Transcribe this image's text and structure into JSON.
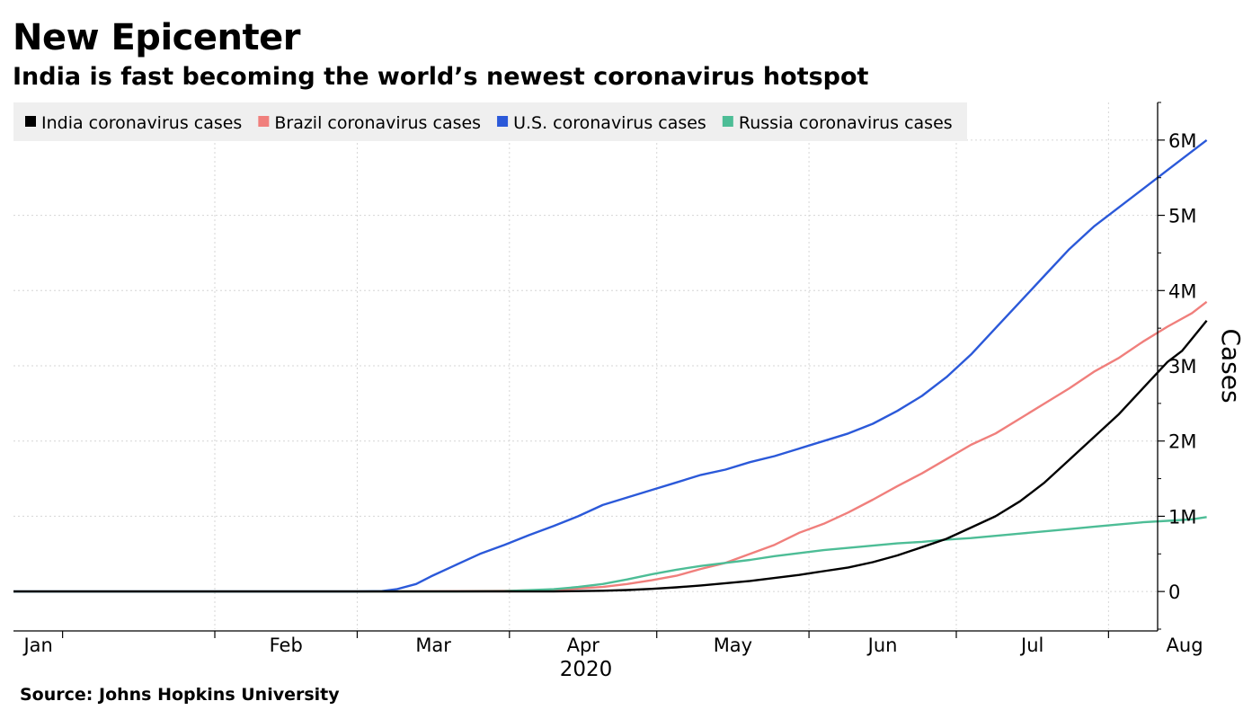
{
  "title": "New Epicenter",
  "subtitle": "India is fast becoming the world’s newest coronavirus hotspot",
  "source": "Source: Johns Hopkins University",
  "colors": {
    "India": "#000000",
    "Brazil": "#f07f7c",
    "U.S.": "#2b59d9",
    "Russia": "#4dbd96",
    "legend_bg": "#efefef",
    "grid": "#d6d6d6"
  },
  "chart_data": {
    "type": "line",
    "title": "New Epicenter",
    "subtitle": "India is fast becoming the world’s newest coronavirus hotspot",
    "xlabel": "2020",
    "ylabel": "Cases",
    "x_unit": "day of year 2020 (Jan 1 = 0)",
    "xlim": [
      -10,
      223
    ],
    "ylim": [
      -500000,
      6500000
    ],
    "month_ticks": [
      {
        "label": "Jan",
        "day": 0
      },
      {
        "label": "Feb",
        "day": 31
      },
      {
        "label": "Mar",
        "day": 60
      },
      {
        "label": "Apr",
        "day": 91
      },
      {
        "label": "May",
        "day": 121
      },
      {
        "label": "Jun",
        "day": 152
      },
      {
        "label": "Jul",
        "day": 182
      },
      {
        "label": "Aug",
        "day": 213
      }
    ],
    "y_ticks": [
      {
        "label": "0",
        "value": 0
      },
      {
        "label": "1M",
        "value": 1000000
      },
      {
        "label": "2M",
        "value": 2000000
      },
      {
        "label": "3M",
        "value": 3000000
      },
      {
        "label": "4M",
        "value": 4000000
      },
      {
        "label": "5M",
        "value": 5000000
      },
      {
        "label": "6M",
        "value": 6000000
      }
    ],
    "x_year_label": "2020",
    "legend_position": "top-left",
    "grid": true,
    "series": [
      {
        "name": "India coronavirus cases",
        "color_key": "India",
        "points": [
          [
            -10,
            0
          ],
          [
            60,
            0
          ],
          [
            100,
            0
          ],
          [
            105,
            5000
          ],
          [
            110,
            10000
          ],
          [
            115,
            20000
          ],
          [
            120,
            35000
          ],
          [
            125,
            55000
          ],
          [
            130,
            80000
          ],
          [
            135,
            110000
          ],
          [
            140,
            140000
          ],
          [
            145,
            180000
          ],
          [
            150,
            220000
          ],
          [
            155,
            270000
          ],
          [
            160,
            320000
          ],
          [
            165,
            390000
          ],
          [
            170,
            480000
          ],
          [
            175,
            590000
          ],
          [
            180,
            700000
          ],
          [
            185,
            850000
          ],
          [
            190,
            1000000
          ],
          [
            195,
            1200000
          ],
          [
            200,
            1450000
          ],
          [
            205,
            1750000
          ],
          [
            210,
            2050000
          ],
          [
            215,
            2350000
          ],
          [
            220,
            2700000
          ],
          [
            225,
            3050000
          ],
          [
            228,
            3200000
          ],
          [
            233,
            3600000
          ]
        ]
      },
      {
        "name": "Brazil coronavirus cases",
        "color_key": "Brazil",
        "points": [
          [
            -10,
            0
          ],
          [
            60,
            0
          ],
          [
            70,
            0
          ],
          [
            80,
            5000
          ],
          [
            90,
            10000
          ],
          [
            100,
            20000
          ],
          [
            110,
            60000
          ],
          [
            115,
            100000
          ],
          [
            120,
            150000
          ],
          [
            125,
            210000
          ],
          [
            130,
            300000
          ],
          [
            135,
            380000
          ],
          [
            140,
            500000
          ],
          [
            145,
            620000
          ],
          [
            150,
            780000
          ],
          [
            155,
            900000
          ],
          [
            160,
            1050000
          ],
          [
            165,
            1220000
          ],
          [
            170,
            1400000
          ],
          [
            175,
            1570000
          ],
          [
            180,
            1760000
          ],
          [
            185,
            1950000
          ],
          [
            190,
            2100000
          ],
          [
            195,
            2300000
          ],
          [
            200,
            2500000
          ],
          [
            205,
            2700000
          ],
          [
            210,
            2920000
          ],
          [
            215,
            3100000
          ],
          [
            220,
            3320000
          ],
          [
            225,
            3520000
          ],
          [
            230,
            3700000
          ],
          [
            233,
            3850000
          ]
        ]
      },
      {
        "name": "U.S. coronavirus cases",
        "color_key": "U.S.",
        "points": [
          [
            -10,
            0
          ],
          [
            60,
            0
          ],
          [
            65,
            5000
          ],
          [
            68,
            30000
          ],
          [
            72,
            100000
          ],
          [
            75,
            200000
          ],
          [
            80,
            350000
          ],
          [
            85,
            500000
          ],
          [
            90,
            620000
          ],
          [
            95,
            750000
          ],
          [
            100,
            870000
          ],
          [
            105,
            1000000
          ],
          [
            110,
            1150000
          ],
          [
            115,
            1250000
          ],
          [
            120,
            1350000
          ],
          [
            125,
            1450000
          ],
          [
            130,
            1550000
          ],
          [
            135,
            1620000
          ],
          [
            140,
            1720000
          ],
          [
            145,
            1800000
          ],
          [
            150,
            1900000
          ],
          [
            155,
            2000000
          ],
          [
            160,
            2100000
          ],
          [
            165,
            2230000
          ],
          [
            170,
            2400000
          ],
          [
            175,
            2600000
          ],
          [
            180,
            2850000
          ],
          [
            185,
            3150000
          ],
          [
            190,
            3500000
          ],
          [
            195,
            3850000
          ],
          [
            200,
            4200000
          ],
          [
            205,
            4550000
          ],
          [
            210,
            4850000
          ],
          [
            215,
            5100000
          ],
          [
            220,
            5350000
          ],
          [
            225,
            5600000
          ],
          [
            230,
            5850000
          ],
          [
            233,
            6000000
          ]
        ]
      },
      {
        "name": "Russia coronavirus cases",
        "color_key": "Russia",
        "points": [
          [
            -10,
            0
          ],
          [
            60,
            0
          ],
          [
            80,
            0
          ],
          [
            90,
            5000
          ],
          [
            100,
            30000
          ],
          [
            105,
            60000
          ],
          [
            110,
            100000
          ],
          [
            115,
            160000
          ],
          [
            120,
            230000
          ],
          [
            125,
            290000
          ],
          [
            130,
            340000
          ],
          [
            135,
            380000
          ],
          [
            140,
            420000
          ],
          [
            145,
            470000
          ],
          [
            150,
            510000
          ],
          [
            155,
            550000
          ],
          [
            160,
            580000
          ],
          [
            165,
            610000
          ],
          [
            170,
            640000
          ],
          [
            175,
            660000
          ],
          [
            180,
            690000
          ],
          [
            185,
            710000
          ],
          [
            190,
            740000
          ],
          [
            195,
            770000
          ],
          [
            200,
            800000
          ],
          [
            205,
            830000
          ],
          [
            210,
            860000
          ],
          [
            215,
            890000
          ],
          [
            220,
            920000
          ],
          [
            225,
            940000
          ],
          [
            230,
            960000
          ],
          [
            233,
            990000
          ]
        ]
      }
    ]
  }
}
